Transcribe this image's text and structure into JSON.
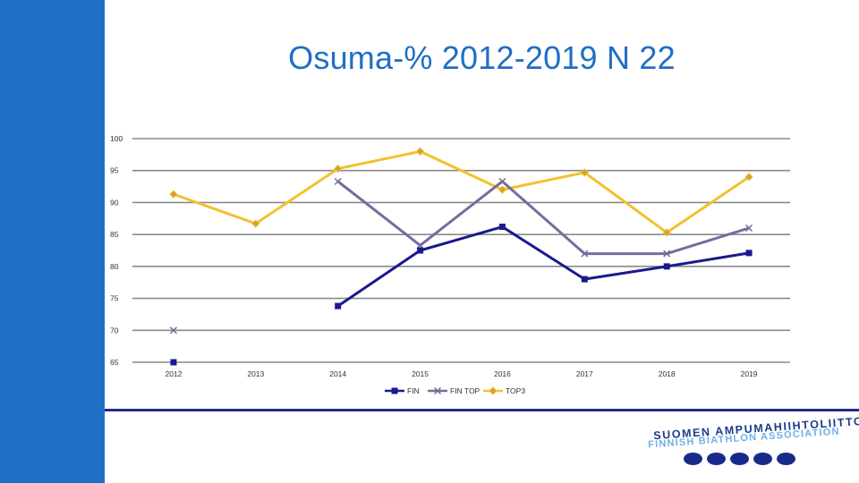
{
  "slide": {
    "title": "Osuma-% 2012-2019 N 22"
  },
  "logo": {
    "line1": "SUOMEN AMPUMAHIIHTOLIITTO",
    "line2": "FINNISH BIATHLON ASSOCIATION"
  },
  "colors": {
    "sidebar": "#1f6fc5",
    "title": "#1f6fc5",
    "footer_line": "#1f2a8a"
  },
  "chart_data": {
    "type": "line",
    "title": "",
    "xlabel": "",
    "ylabel": "",
    "ylim": [
      65,
      100
    ],
    "yticks": [
      100,
      95,
      90,
      85,
      80,
      75,
      70,
      65
    ],
    "categories": [
      "2012",
      "2013",
      "2014",
      "2015",
      "2016",
      "2017",
      "2018",
      "2019"
    ],
    "grid": true,
    "legend_position": "bottom",
    "series": [
      {
        "name": "FIN",
        "color": "#1a1a8c",
        "marker": "square",
        "values": [
          65,
          null,
          73.8,
          82.5,
          86.2,
          78,
          80,
          82.1
        ]
      },
      {
        "name": "FIN TOP",
        "color": "#7b6a9a",
        "marker": "x",
        "values": [
          70,
          null,
          93.3,
          83.3,
          93.3,
          82,
          82,
          86
        ]
      },
      {
        "name": "TOP3",
        "color": "#f2c12e",
        "marker": "diamond",
        "values": [
          91.3,
          86.7,
          95.3,
          98,
          92,
          94.7,
          85.3,
          94
        ]
      }
    ]
  }
}
